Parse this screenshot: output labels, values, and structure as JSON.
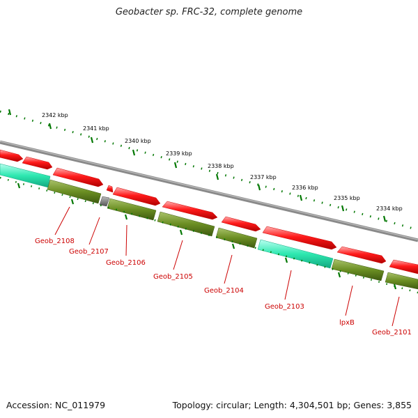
{
  "title": "Geobacter sp. FRC-32, complete genome",
  "accession_text": "Accession: NC_011979",
  "summary_text": "Topology: circular; Length: 4,304,501 bp; Genes: 3,855",
  "colors": {
    "forward_cds": "#ff0000",
    "reverse_cds": "#6b8e23",
    "rna": "#2ee8b0",
    "other": "#777777",
    "backbone": "#8a8a8a",
    "ticks": "#007700",
    "labels": "#cc0000"
  },
  "kbp_labels": [
    "2342 kbp",
    "2341 kbp",
    "2340 kbp",
    "2339 kbp",
    "2338 kbp",
    "2337 kbp",
    "2336 kbp",
    "2335 kbp",
    "2334 kbp"
  ],
  "gene_labels": [
    "Geob_2108",
    "Geob_2107",
    "Geob_2106",
    "Geob_2105",
    "Geob_2104",
    "Geob_2103",
    "lpxB",
    "Geob_2101"
  ]
}
